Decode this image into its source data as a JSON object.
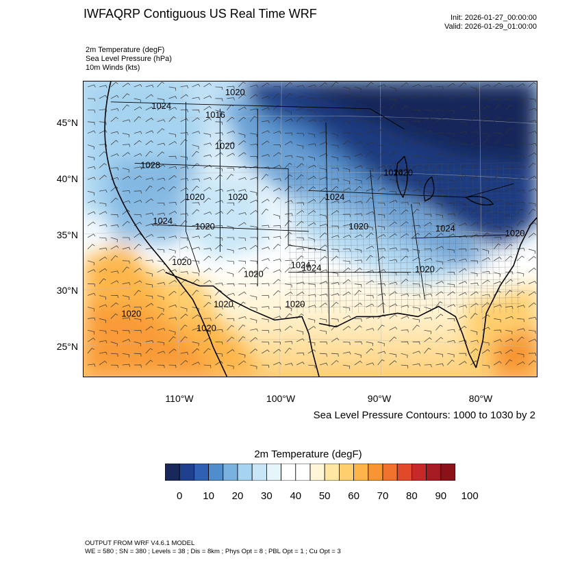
{
  "header": {
    "title": "IWFAQRP Contiguous US Real Time WRF",
    "init": "Init: 2026-01-27_00:00:00",
    "valid": "Valid: 2026-01-29_01:00:00"
  },
  "fields": [
    "2m Temperature   (degF)",
    "Sea Level Pressure   (hPa)",
    "10m Winds   (kts)"
  ],
  "map": {
    "lat_labels": [
      "45°N",
      "40°N",
      "35°N",
      "30°N",
      "25°N"
    ],
    "lon_labels": [
      "110°W",
      "100°W",
      "90°W",
      "80°W"
    ],
    "slp_labels": [
      "1020",
      "1024",
      "1016",
      "1020",
      "1028",
      "1024",
      "1020",
      "1020",
      "1024",
      "1020",
      "1024",
      "1020",
      "1024",
      "1020",
      "1020",
      "1020",
      "1020",
      "1024",
      "1020",
      "1020",
      "1020",
      "1020",
      "1024",
      "1020"
    ]
  },
  "contour_note": "Sea Level Pressure Contours: 1000 to 1030 by 2",
  "colorbar": {
    "title": "2m Temperature  (degF)",
    "labels": [
      "0",
      "10",
      "20",
      "30",
      "40",
      "50",
      "60",
      "70",
      "80",
      "90",
      "100"
    ],
    "colors": [
      "#19285a",
      "#1f3f8f",
      "#2e61b3",
      "#4f8dcc",
      "#79b2de",
      "#a6d3f0",
      "#c8e6f7",
      "#e6f4fb",
      "#ffffff",
      "#ffffff",
      "#fff6d8",
      "#ffe6a3",
      "#ffcf6e",
      "#fdb54a",
      "#f79533",
      "#f0722c",
      "#e04a2a",
      "#c72929",
      "#a61a22",
      "#8b1119"
    ]
  },
  "footer": {
    "line1": "OUTPUT FROM WRF V4.6.1 MODEL",
    "line2": "WE = 580 ; SN = 380 ; Levels = 38 ; Dis = 8km ; Phys Opt = 8 ; PBL Opt = 1 ; Cu Opt = 3"
  }
}
